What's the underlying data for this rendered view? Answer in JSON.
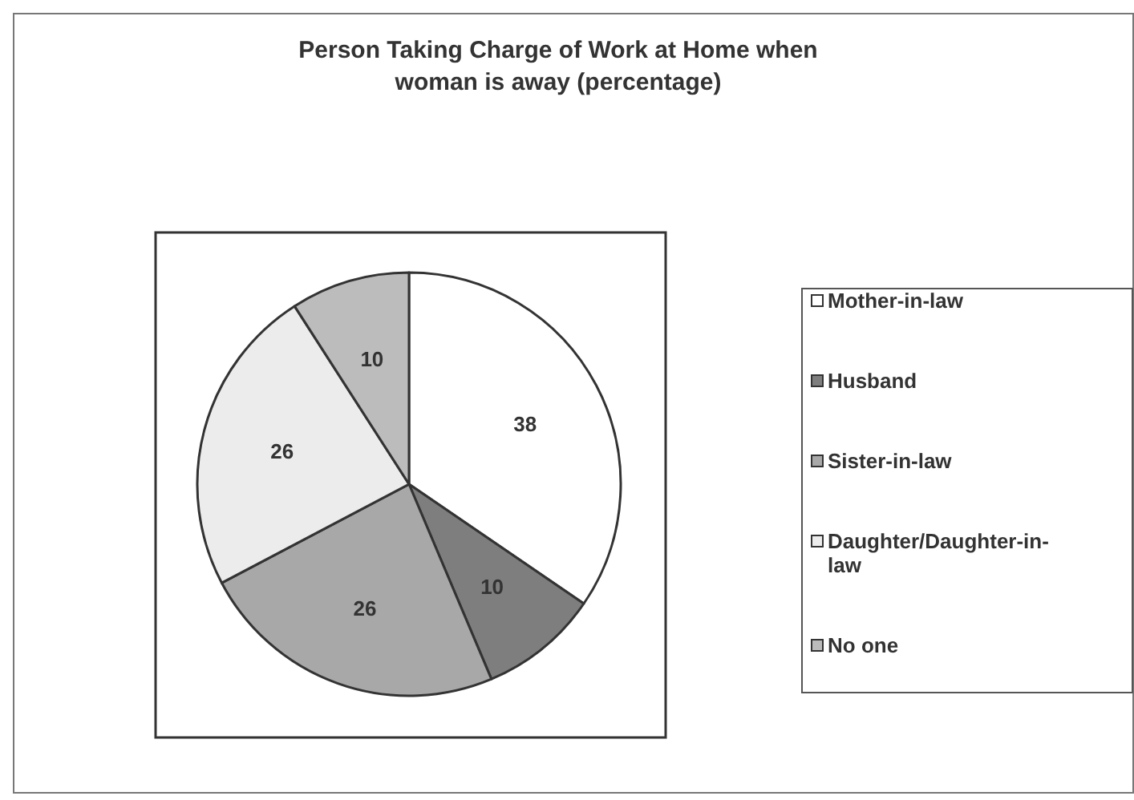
{
  "chart_data": {
    "type": "pie",
    "title": "Person Taking Charge of Work at Home when woman is away (percentage)",
    "categories": [
      "Mother-in-law",
      "Husband",
      "Sister-in-law",
      "Daughter/Daughter-in-law",
      "No one"
    ],
    "values": [
      38,
      10,
      26,
      26,
      10
    ],
    "colors": [
      "#ffffff",
      "#7e7e7e",
      "#a8a8a8",
      "#ececec",
      "#bcbcbc"
    ],
    "data_labels": true,
    "legend": "right"
  }
}
